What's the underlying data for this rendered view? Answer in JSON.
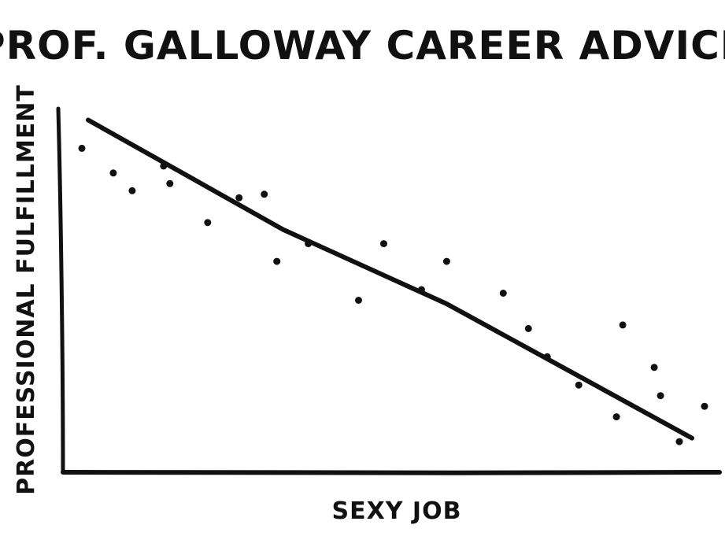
{
  "chart_data": {
    "type": "scatter",
    "title": "PROF. GALLOWAY CAREER ADVICE",
    "xlabel": "SEXY JOB",
    "ylabel": "PROFESSIONAL FULFILLMENT",
    "xlim": [
      0,
      100
    ],
    "ylim": [
      0,
      100
    ],
    "grid": false,
    "legend": "none",
    "ink_color": "#111111",
    "background_color": "#ffffff",
    "series": [
      {
        "points": [
          {
            "x": 2,
            "y": 91
          },
          {
            "x": 7,
            "y": 84
          },
          {
            "x": 10,
            "y": 79
          },
          {
            "x": 15,
            "y": 86
          },
          {
            "x": 16,
            "y": 81
          },
          {
            "x": 22,
            "y": 70
          },
          {
            "x": 27,
            "y": 77
          },
          {
            "x": 31,
            "y": 78
          },
          {
            "x": 33,
            "y": 59
          },
          {
            "x": 38,
            "y": 64
          },
          {
            "x": 46,
            "y": 48
          },
          {
            "x": 50,
            "y": 64
          },
          {
            "x": 56,
            "y": 51
          },
          {
            "x": 60,
            "y": 59
          },
          {
            "x": 69,
            "y": 50
          },
          {
            "x": 73,
            "y": 40
          },
          {
            "x": 76,
            "y": 32
          },
          {
            "x": 81,
            "y": 24
          },
          {
            "x": 87,
            "y": 15
          },
          {
            "x": 88,
            "y": 41
          },
          {
            "x": 93,
            "y": 29
          },
          {
            "x": 94,
            "y": 21
          },
          {
            "x": 97,
            "y": 8
          },
          {
            "x": 101,
            "y": 18
          }
        ]
      }
    ],
    "trend_line": {
      "start": {
        "x": 3,
        "y": 99
      },
      "mid1": {
        "x": 34,
        "y": 68
      },
      "mid2": {
        "x": 60,
        "y": 47
      },
      "end": {
        "x": 99,
        "y": 9
      }
    }
  }
}
